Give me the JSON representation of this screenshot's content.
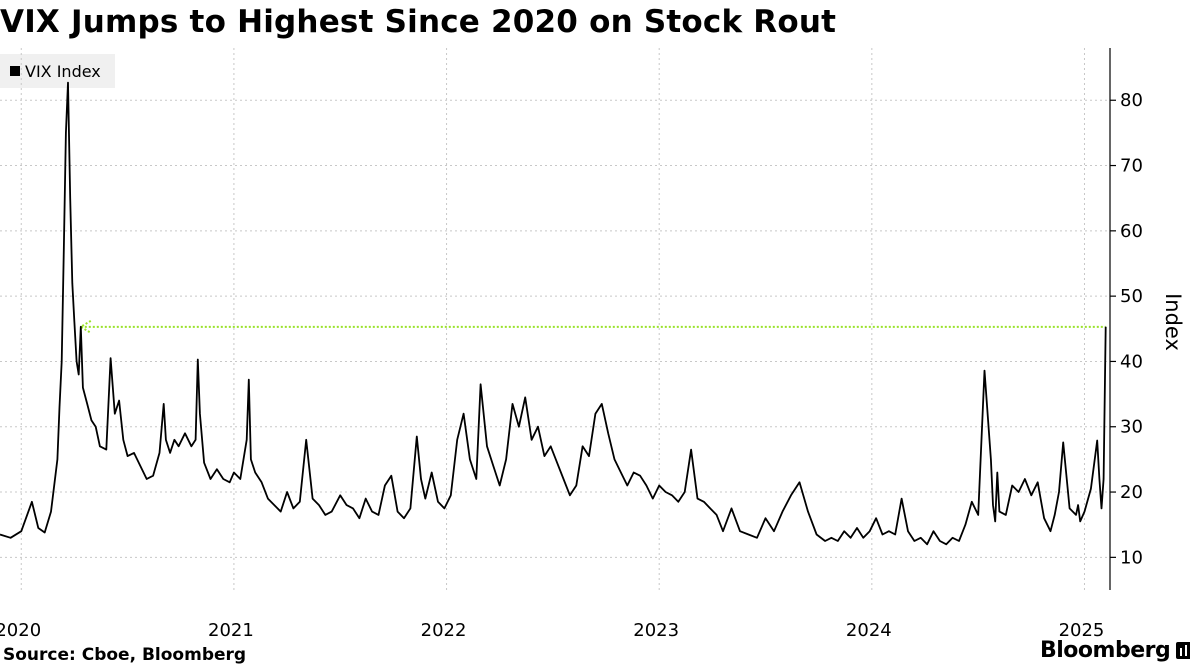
{
  "title": "VIX Jumps to Highest Since 2020 on Stock Rout",
  "source": "Source: Cboe, Bloomberg",
  "brand": "Bloomberg",
  "legend": {
    "label": "VIX Index"
  },
  "colors": {
    "line": "#000000",
    "annotation": "#9ae22a",
    "grid": "#c8c8c8",
    "legend_bg": "#f0f0f0"
  },
  "chart_data": {
    "type": "line",
    "title": "VIX Jumps to Highest Since 2020 on Stock Rout",
    "ylabel": "Index",
    "xlabel": "",
    "ylim": [
      5,
      88
    ],
    "xlim": [
      2019.9,
      2025.12
    ],
    "y_ticks": [
      10,
      20,
      30,
      40,
      50,
      60,
      70,
      80
    ],
    "y_tick_labels": [
      "10",
      "20",
      "30",
      "40",
      "50",
      "60",
      "70",
      "80"
    ],
    "x_ticks": [
      2020,
      2021,
      2022,
      2023,
      2024,
      2025
    ],
    "x_tick_labels": [
      "2020",
      "2021",
      "2022",
      "2023",
      "2024",
      "2025"
    ],
    "grid": true,
    "legend_position": "top-left",
    "annotation": {
      "type": "dotted-arrow",
      "value": 45.3,
      "from_x": 2025.1,
      "to_x": 2020.28
    },
    "series": [
      {
        "name": "VIX Index",
        "x": [
          2019.9,
          2019.95,
          2020.0,
          2020.05,
          2020.08,
          2020.11,
          2020.14,
          2020.17,
          2020.18,
          2020.19,
          2020.2,
          2020.21,
          2020.22,
          2020.23,
          2020.24,
          2020.25,
          2020.26,
          2020.27,
          2020.28,
          2020.29,
          2020.31,
          2020.33,
          2020.35,
          2020.37,
          2020.4,
          2020.42,
          2020.44,
          2020.46,
          2020.48,
          2020.5,
          2020.53,
          2020.56,
          2020.59,
          2020.62,
          2020.65,
          2020.67,
          2020.68,
          2020.7,
          2020.72,
          2020.74,
          2020.77,
          2020.8,
          2020.82,
          2020.83,
          2020.84,
          2020.86,
          2020.89,
          2020.92,
          2020.95,
          2020.98,
          2021.0,
          2021.03,
          2021.06,
          2021.07,
          2021.08,
          2021.1,
          2021.13,
          2021.16,
          2021.19,
          2021.22,
          2021.25,
          2021.28,
          2021.31,
          2021.34,
          2021.37,
          2021.4,
          2021.43,
          2021.46,
          2021.5,
          2021.53,
          2021.56,
          2021.59,
          2021.62,
          2021.65,
          2021.68,
          2021.71,
          2021.74,
          2021.77,
          2021.8,
          2021.83,
          2021.86,
          2021.88,
          2021.9,
          2021.93,
          2021.96,
          2021.99,
          2022.02,
          2022.05,
          2022.08,
          2022.11,
          2022.14,
          2022.16,
          2022.19,
          2022.22,
          2022.25,
          2022.28,
          2022.31,
          2022.34,
          2022.37,
          2022.4,
          2022.43,
          2022.46,
          2022.49,
          2022.52,
          2022.55,
          2022.58,
          2022.61,
          2022.64,
          2022.67,
          2022.7,
          2022.73,
          2022.76,
          2022.79,
          2022.82,
          2022.85,
          2022.88,
          2022.91,
          2022.94,
          2022.97,
          2023.0,
          2023.03,
          2023.06,
          2023.09,
          2023.12,
          2023.15,
          2023.18,
          2023.21,
          2023.24,
          2023.27,
          2023.3,
          2023.34,
          2023.38,
          2023.42,
          2023.46,
          2023.5,
          2023.54,
          2023.58,
          2023.62,
          2023.66,
          2023.7,
          2023.74,
          2023.78,
          2023.81,
          2023.84,
          2023.87,
          2023.9,
          2023.93,
          2023.96,
          2023.99,
          2024.02,
          2024.05,
          2024.08,
          2024.11,
          2024.14,
          2024.17,
          2024.2,
          2024.23,
          2024.26,
          2024.29,
          2024.32,
          2024.35,
          2024.38,
          2024.41,
          2024.44,
          2024.47,
          2024.5,
          2024.53,
          2024.56,
          2024.57,
          2024.58,
          2024.59,
          2024.6,
          2024.63,
          2024.66,
          2024.69,
          2024.72,
          2024.75,
          2024.78,
          2024.81,
          2024.84,
          2024.86,
          2024.88,
          2024.9,
          2024.93,
          2024.96,
          2024.97,
          2024.98,
          2025.0,
          2025.03,
          2025.06,
          2025.07,
          2025.08,
          2025.09,
          2025.1
        ],
        "values": [
          13.5,
          13.0,
          14.0,
          18.5,
          14.5,
          13.8,
          17.0,
          25.0,
          33.0,
          40.0,
          57.0,
          75.0,
          82.7,
          65.0,
          52.0,
          46.0,
          40.0,
          38.0,
          45.3,
          36.0,
          33.5,
          31.0,
          30.0,
          27.0,
          26.5,
          40.5,
          32.0,
          34.0,
          28.0,
          25.5,
          26.0,
          24.0,
          22.0,
          22.5,
          26.0,
          33.5,
          28.0,
          26.0,
          28.0,
          27.0,
          29.0,
          27.0,
          28.0,
          40.3,
          32.0,
          24.5,
          22.0,
          23.5,
          22.0,
          21.5,
          23.0,
          22.0,
          28.0,
          37.2,
          25.0,
          23.0,
          21.5,
          19.0,
          18.0,
          17.0,
          20.0,
          17.5,
          18.5,
          28.0,
          19.0,
          18.0,
          16.5,
          17.0,
          19.5,
          18.0,
          17.5,
          16.0,
          19.0,
          17.0,
          16.5,
          21.0,
          22.5,
          17.0,
          16.0,
          17.5,
          28.5,
          22.0,
          19.0,
          23.0,
          18.5,
          17.5,
          19.5,
          28.0,
          32.0,
          25.0,
          22.0,
          36.5,
          27.0,
          24.0,
          21.0,
          25.0,
          33.5,
          30.0,
          34.5,
          28.0,
          30.0,
          25.5,
          27.0,
          24.5,
          22.0,
          19.5,
          21.0,
          27.0,
          25.5,
          32.0,
          33.5,
          29.0,
          25.0,
          23.0,
          21.0,
          23.0,
          22.5,
          21.0,
          19.0,
          21.0,
          20.0,
          19.5,
          18.5,
          20.0,
          26.5,
          19.0,
          18.5,
          17.5,
          16.5,
          14.0,
          17.5,
          14.0,
          13.5,
          13.0,
          16.0,
          14.0,
          17.0,
          19.5,
          21.5,
          17.0,
          13.5,
          12.5,
          13.0,
          12.5,
          14.0,
          13.0,
          14.5,
          13.0,
          14.0,
          16.0,
          13.5,
          14.0,
          13.5,
          19.0,
          14.0,
          12.5,
          13.0,
          12.0,
          14.0,
          12.5,
          12.0,
          13.0,
          12.5,
          15.0,
          18.5,
          16.5,
          38.6,
          25.0,
          18.0,
          15.5,
          23.0,
          17.0,
          16.5,
          21.0,
          20.0,
          22.0,
          19.5,
          21.5,
          16.0,
          14.0,
          16.5,
          20.0,
          27.6,
          17.5,
          16.5,
          18.0,
          15.5,
          17.0,
          20.5,
          27.9,
          22.0,
          17.5,
          22.0,
          45.3
        ]
      }
    ]
  }
}
